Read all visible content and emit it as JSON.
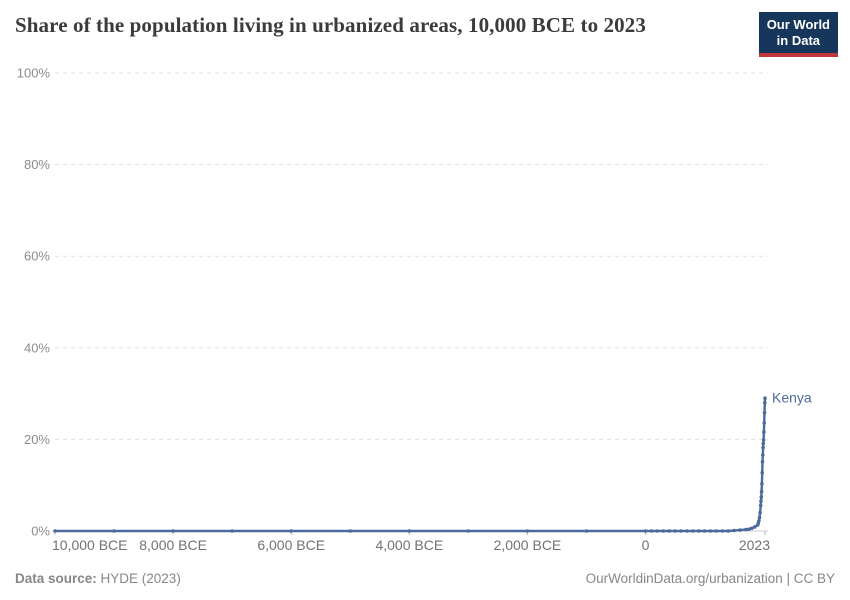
{
  "header": {
    "title": "Share of the population living in urbanized areas, 10,000 BCE to 2023",
    "logo_line1": "Our World",
    "logo_line2": "in Data"
  },
  "footer": {
    "datasource_label": "Data source:",
    "datasource_value": " HYDE (2023)",
    "credit": "OurWorldinData.org/urbanization | CC BY"
  },
  "colors": {
    "line": "#4c6a9c",
    "series_label": "#4c6a9c",
    "grid": "#e0e0e0",
    "axis_line": "#cccccc",
    "tick_mark": "#b9b9b9",
    "x_axis_text": "#737373",
    "y_axis_text": "#8c8c8c",
    "title_text": "#3b3b3b",
    "footer_text": "#878787",
    "logo_bg": "#16365c",
    "logo_accent": "#c0363c"
  },
  "chart_data": {
    "type": "line",
    "title": "Share of the population living in urbanized areas, 10,000 BCE to 2023",
    "xlabel": "",
    "ylabel": "",
    "xlim": [
      -10000,
      2023
    ],
    "ylim": [
      0,
      100
    ],
    "grid": "horizontal-dashed",
    "legend_position": "series-end-label",
    "x_ticks": [
      {
        "label": "10,000 BCE",
        "year": -10000
      },
      {
        "label": "8,000 BCE",
        "year": -8000
      },
      {
        "label": "6,000 BCE",
        "year": -6000
      },
      {
        "label": "4,000 BCE",
        "year": -4000
      },
      {
        "label": "2,000 BCE",
        "year": -2000
      },
      {
        "label": "0",
        "year": 0
      },
      {
        "label": "2023",
        "year": 2023
      }
    ],
    "y_ticks": [
      {
        "label": "0%",
        "value": 0
      },
      {
        "label": "20%",
        "value": 20
      },
      {
        "label": "40%",
        "value": 40
      },
      {
        "label": "60%",
        "value": 60
      },
      {
        "label": "80%",
        "value": 80
      },
      {
        "label": "100%",
        "value": 100
      }
    ],
    "series": [
      {
        "name": "Kenya",
        "points": [
          [
            -10000,
            0
          ],
          [
            -9000,
            0
          ],
          [
            -8000,
            0
          ],
          [
            -7000,
            0
          ],
          [
            -6000,
            0
          ],
          [
            -5000,
            0
          ],
          [
            -4000,
            0
          ],
          [
            -3000,
            0
          ],
          [
            -2000,
            0
          ],
          [
            -1000,
            0
          ],
          [
            0,
            0
          ],
          [
            100,
            0
          ],
          [
            200,
            0
          ],
          [
            300,
            0
          ],
          [
            400,
            0
          ],
          [
            500,
            0
          ],
          [
            600,
            0
          ],
          [
            700,
            0
          ],
          [
            800,
            0
          ],
          [
            900,
            0
          ],
          [
            1000,
            0
          ],
          [
            1100,
            0
          ],
          [
            1200,
            0
          ],
          [
            1300,
            0
          ],
          [
            1400,
            0
          ],
          [
            1500,
            0.1
          ],
          [
            1600,
            0.2
          ],
          [
            1700,
            0.3
          ],
          [
            1750,
            0.4
          ],
          [
            1800,
            0.6
          ],
          [
            1850,
            0.9
          ],
          [
            1900,
            1.3
          ],
          [
            1910,
            1.7
          ],
          [
            1920,
            2.2
          ],
          [
            1930,
            2.9
          ],
          [
            1940,
            4.0
          ],
          [
            1950,
            5.6
          ],
          [
            1955,
            6.5
          ],
          [
            1960,
            7.4
          ],
          [
            1965,
            8.6
          ],
          [
            1970,
            10.3
          ],
          [
            1975,
            12.7
          ],
          [
            1980,
            15.1
          ],
          [
            1985,
            16.6
          ],
          [
            1990,
            18.2
          ],
          [
            1995,
            19.1
          ],
          [
            2000,
            19.9
          ],
          [
            2005,
            21.6
          ],
          [
            2010,
            23.6
          ],
          [
            2015,
            25.8
          ],
          [
            2020,
            28.0
          ],
          [
            2023,
            29.0
          ]
        ]
      }
    ]
  }
}
